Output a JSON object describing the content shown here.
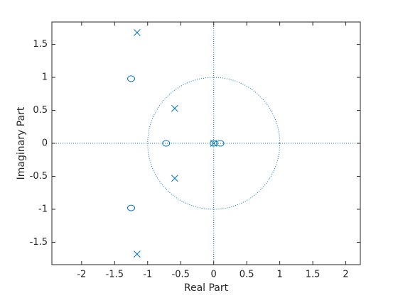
{
  "chart_data": {
    "type": "scatter",
    "xlabel": "Real Part",
    "ylabel": "Imaginary Part",
    "xlim": [
      -2.45,
      2.22
    ],
    "ylim": [
      -1.84,
      1.84
    ],
    "xticks": [
      -2,
      -1.5,
      -1,
      -0.5,
      0,
      0.5,
      1,
      1.5,
      2
    ],
    "yticks": [
      -1.5,
      -1,
      -0.5,
      0,
      0.5,
      1,
      1.5
    ],
    "unit_circle": true,
    "axis_lines": true,
    "series": [
      {
        "marker": "o",
        "color": "#0072bd",
        "x": [
          -1.25,
          -1.25,
          -0.72,
          0,
          0.1
        ],
        "values": [
          0.98,
          -0.98,
          0,
          0,
          0
        ]
      },
      {
        "marker": "x",
        "color": "#0072bd",
        "x": [
          -1.16,
          -1.16,
          -0.59,
          -0.59,
          0
        ],
        "values": [
          1.68,
          -1.68,
          0.53,
          -0.53,
          0
        ]
      }
    ]
  }
}
